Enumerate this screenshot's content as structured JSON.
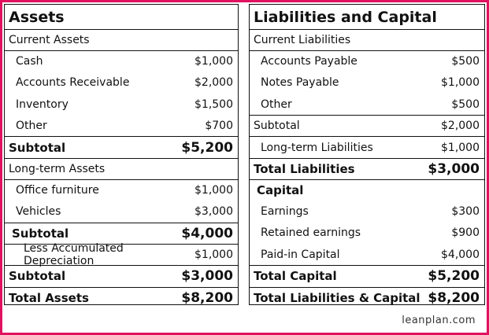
{
  "left": {
    "title": "Assets",
    "rows": [
      [
        "Current Assets"
      ],
      [
        "Cash",
        "$1,000"
      ],
      [
        "Accounts Receivable",
        "$2,000"
      ],
      [
        "Inventory",
        "$1,500"
      ],
      [
        "Other",
        "$700"
      ],
      [
        "Subtotal",
        "$5,200"
      ],
      [
        "Long-term Assets"
      ],
      [
        "Office furniture",
        "$1,000"
      ],
      [
        "Vehicles",
        "$3,000"
      ],
      [
        "Subtotal",
        "$4,000"
      ],
      [
        "Less Accumulated Depreciation",
        "$1,000"
      ],
      [
        "Subtotal",
        "$3,000"
      ],
      [
        "Total Assets",
        "$8,200"
      ]
    ]
  },
  "right": {
    "title": "Liabilities and Capital",
    "rows": [
      [
        "Current Liabilities"
      ],
      [
        "Accounts Payable",
        "$500"
      ],
      [
        "Notes Payable",
        "$1,000"
      ],
      [
        "Other",
        "$500"
      ],
      [
        "Subtotal",
        "$2,000"
      ],
      [
        "Long-term Liabilities",
        "$1,000"
      ],
      [
        "Total Liabilities",
        "$3,000"
      ],
      [
        "Capital"
      ],
      [
        "Earnings",
        "$300"
      ],
      [
        "Retained earnings",
        "$900"
      ],
      [
        "Paid-in Capital",
        "$4,000"
      ],
      [
        "Total Capital",
        "$5,200"
      ],
      [
        "Total Liabilities & Capital",
        "$8,200"
      ]
    ]
  },
  "footer": "leanplan.com"
}
